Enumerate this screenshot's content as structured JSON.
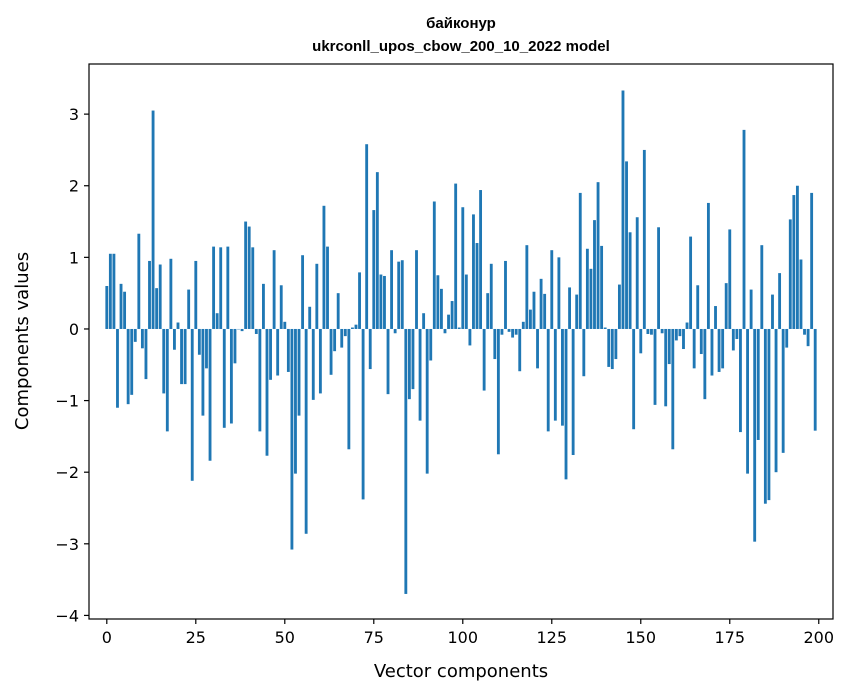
{
  "chart_data": {
    "type": "bar",
    "title": "байконур",
    "subtitle": "ukrconll_upos_cbow_200_10_2022 model",
    "xlabel": "Vector components",
    "ylabel": "Components values",
    "xlim": [
      -5,
      204
    ],
    "ylim": [
      -4.05,
      3.7
    ],
    "xticks": [
      0,
      25,
      50,
      75,
      100,
      125,
      150,
      175,
      200
    ],
    "yticks": [
      -4,
      -3,
      -2,
      -1,
      0,
      1,
      2,
      3
    ],
    "ytick_labels": [
      "−4",
      "−3",
      "−2",
      "−1",
      "0",
      "1",
      "2",
      "3"
    ],
    "grid": false,
    "bar_color": "#1f77b4",
    "values": [
      0.6,
      1.05,
      1.05,
      -1.1,
      0.63,
      0.52,
      -1.05,
      -0.92,
      -0.18,
      1.33,
      -0.27,
      -0.7,
      0.95,
      3.05,
      0.57,
      0.9,
      -0.9,
      -1.43,
      0.98,
      -0.29,
      0.09,
      -0.77,
      -0.77,
      0.55,
      -2.12,
      0.95,
      -0.36,
      -1.21,
      -0.55,
      -1.84,
      1.15,
      0.22,
      1.14,
      -1.38,
      1.15,
      -1.32,
      -0.48,
      0.0,
      -0.03,
      1.5,
      1.43,
      1.14,
      -0.07,
      -1.43,
      0.63,
      -1.77,
      -0.71,
      1.1,
      -0.65,
      0.61,
      0.1,
      -0.6,
      -3.08,
      -2.02,
      -1.21,
      1.03,
      -2.86,
      0.31,
      -0.99,
      0.91,
      -0.9,
      1.72,
      1.15,
      -0.64,
      -0.31,
      0.5,
      -0.26,
      -0.1,
      -1.68,
      0.02,
      0.06,
      0.79,
      -2.38,
      2.58,
      -0.56,
      1.66,
      2.19,
      0.76,
      0.74,
      -0.91,
      1.1,
      -0.06,
      0.94,
      0.96,
      -3.7,
      -0.98,
      -0.84,
      1.1,
      -1.28,
      0.22,
      -2.02,
      -0.44,
      1.78,
      0.75,
      0.56,
      -0.06,
      0.2,
      0.39,
      2.03,
      0.02,
      1.7,
      0.76,
      -0.23,
      1.6,
      1.2,
      1.94,
      -0.86,
      0.5,
      0.91,
      -0.42,
      -1.75,
      -0.08,
      0.95,
      -0.04,
      -0.12,
      -0.08,
      -0.59,
      0.1,
      1.17,
      0.27,
      0.52,
      -0.55,
      0.7,
      0.49,
      -1.43,
      1.1,
      -1.28,
      1.0,
      -1.35,
      -2.1,
      0.58,
      -1.76,
      0.48,
      1.9,
      -0.66,
      1.12,
      0.84,
      1.52,
      2.05,
      1.16,
      0.02,
      -0.53,
      -0.56,
      -0.42,
      0.62,
      3.33,
      2.34,
      1.35,
      -1.4,
      1.56,
      -0.34,
      2.5,
      -0.07,
      -0.08,
      -1.06,
      1.42,
      -0.06,
      -1.08,
      -0.49,
      -1.68,
      -0.16,
      -0.1,
      -0.28,
      0.09,
      1.29,
      -0.55,
      0.61,
      -0.35,
      -0.98,
      1.76,
      -0.65,
      0.32,
      -0.6,
      -0.55,
      0.64,
      1.39,
      -0.3,
      -0.14,
      -1.44,
      2.78,
      -2.02,
      0.55,
      -2.97,
      -1.55,
      1.17,
      -2.44,
      -2.39,
      0.48,
      -2.0,
      0.78,
      -1.73,
      -0.26,
      1.53,
      1.87,
      2.0,
      0.97,
      -0.08,
      -0.24,
      1.9,
      -1.42
    ]
  }
}
